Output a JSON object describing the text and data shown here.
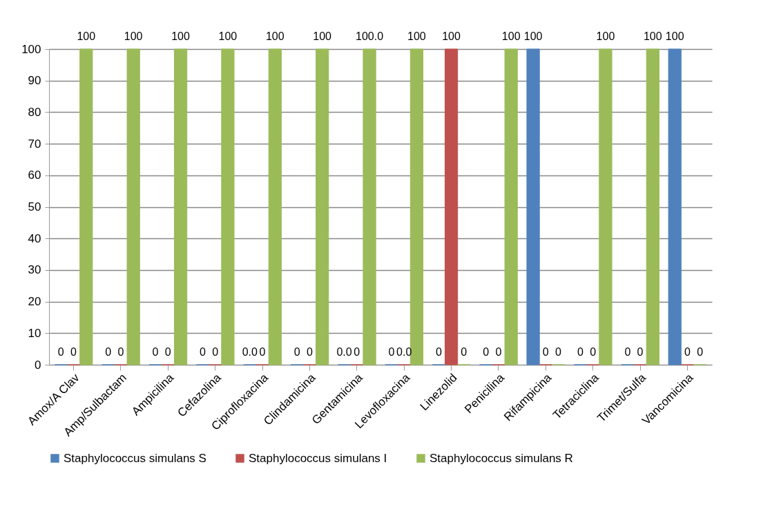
{
  "chart_data": {
    "type": "bar",
    "categories": [
      "Amox/A Clav",
      "Amp/Sulbactam",
      "Ampicilina",
      "Cefazolina",
      "Ciprofloxacina",
      "Clindamicina",
      "Gentamicina",
      "Levofloxacina",
      "Linezolid",
      "Penicilina",
      "Rifampicina",
      "Tetraciclina",
      "Trimet/Sulfa",
      "Vancomicina"
    ],
    "series": [
      {
        "name": "Staphylococcus simulans S",
        "color": "#4f81bd",
        "values": [
          0,
          0,
          0,
          0,
          0,
          0,
          0,
          0,
          0,
          0,
          100,
          0,
          0,
          100
        ],
        "value_labels": [
          "0",
          "0",
          "0",
          "0",
          "0.0",
          "0",
          "0.0",
          "0",
          "0",
          "0",
          "100",
          "0",
          "0",
          "100"
        ]
      },
      {
        "name": "Staphylococcus simulans I",
        "color": "#c0504d",
        "values": [
          0,
          0,
          0,
          0,
          0,
          0,
          0,
          0,
          100,
          0,
          0,
          0,
          0,
          0
        ],
        "value_labels": [
          "0",
          "0",
          "0",
          "0",
          "0",
          "0",
          "0",
          "0.0",
          "100",
          "0",
          "0",
          "0",
          "0",
          "0"
        ]
      },
      {
        "name": "Staphylococcus simulans R",
        "color": "#9bbb59",
        "values": [
          100,
          100,
          100,
          100,
          100,
          100,
          100,
          100,
          0,
          100,
          0,
          100,
          100,
          0
        ],
        "value_labels": [
          "100",
          "100",
          "100",
          "100",
          "100",
          "100",
          "100.0",
          "100",
          "0",
          "100",
          "0",
          "100",
          "100",
          "0"
        ]
      }
    ],
    "ylim": [
      0,
      100
    ],
    "yticks": [
      0,
      10,
      20,
      30,
      40,
      50,
      60,
      70,
      80,
      90,
      100
    ],
    "grid": "y",
    "legend": "bottom"
  }
}
